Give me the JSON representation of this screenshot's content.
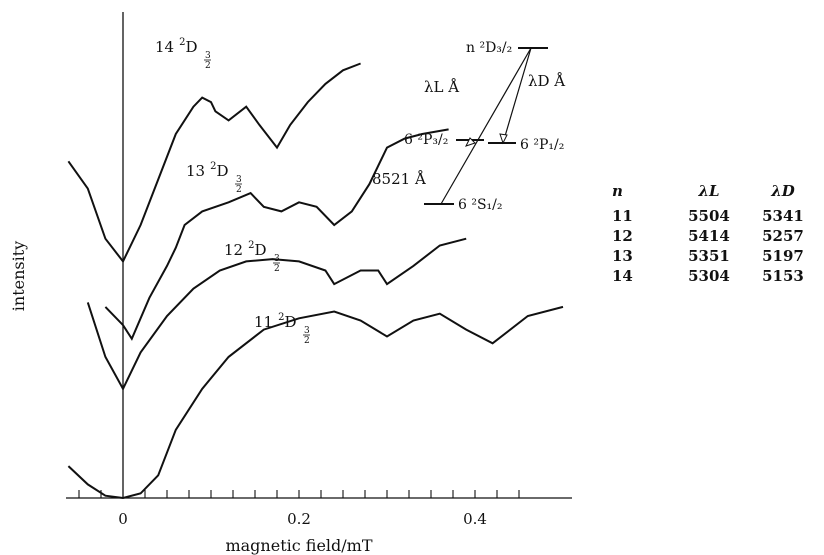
{
  "chart_data": {
    "type": "line",
    "xlabel": "magnetic field/mT",
    "ylabel": "intensity",
    "xlim": [
      -0.07,
      0.51
    ],
    "x_ticks": [
      "0",
      "0.2",
      "0.4"
    ],
    "series": [
      {
        "name": "14 ²D₃/₂",
        "points": [
          [
            -0.062,
            0.74
          ],
          [
            -0.04,
            0.68
          ],
          [
            -0.02,
            0.57
          ],
          [
            0,
            0.52
          ],
          [
            0.02,
            0.6
          ],
          [
            0.04,
            0.7
          ],
          [
            0.06,
            0.8
          ],
          [
            0.08,
            0.86
          ],
          [
            0.09,
            0.88
          ],
          [
            0.1,
            0.87
          ],
          [
            0.105,
            0.85
          ],
          [
            0.12,
            0.83
          ],
          [
            0.14,
            0.86
          ],
          [
            0.155,
            0.82
          ],
          [
            0.175,
            0.77
          ],
          [
            0.19,
            0.82
          ],
          [
            0.21,
            0.87
          ],
          [
            0.23,
            0.91
          ],
          [
            0.25,
            0.94
          ],
          [
            0.27,
            0.955
          ]
        ]
      },
      {
        "name": "13 ²D₃/₂",
        "points": [
          [
            -0.02,
            0.42
          ],
          [
            0,
            0.38
          ],
          [
            0.01,
            0.35
          ],
          [
            0.03,
            0.44
          ],
          [
            0.05,
            0.51
          ],
          [
            0.06,
            0.55
          ],
          [
            0.07,
            0.6
          ],
          [
            0.09,
            0.63
          ],
          [
            0.12,
            0.65
          ],
          [
            0.145,
            0.67
          ],
          [
            0.16,
            0.64
          ],
          [
            0.18,
            0.63
          ],
          [
            0.2,
            0.65
          ],
          [
            0.22,
            0.64
          ],
          [
            0.24,
            0.6
          ],
          [
            0.26,
            0.63
          ],
          [
            0.28,
            0.69
          ],
          [
            0.3,
            0.77
          ],
          [
            0.32,
            0.79
          ],
          [
            0.34,
            0.8
          ],
          [
            0.37,
            0.81
          ]
        ]
      },
      {
        "name": "12 ²D₃/₂",
        "points": [
          [
            -0.04,
            0.43
          ],
          [
            -0.02,
            0.31
          ],
          [
            0,
            0.24
          ],
          [
            0.02,
            0.32
          ],
          [
            0.05,
            0.4
          ],
          [
            0.08,
            0.46
          ],
          [
            0.11,
            0.5
          ],
          [
            0.14,
            0.52
          ],
          [
            0.17,
            0.525
          ],
          [
            0.2,
            0.52
          ],
          [
            0.23,
            0.5
          ],
          [
            0.24,
            0.47
          ],
          [
            0.27,
            0.5
          ],
          [
            0.29,
            0.5
          ],
          [
            0.3,
            0.47
          ],
          [
            0.33,
            0.51
          ],
          [
            0.36,
            0.555
          ],
          [
            0.39,
            0.57
          ]
        ]
      },
      {
        "name": "11 ²D₃/₂",
        "points": [
          [
            -0.062,
            0.07
          ],
          [
            -0.04,
            0.03
          ],
          [
            -0.02,
            0.005
          ],
          [
            0,
            0
          ],
          [
            0.02,
            0.01
          ],
          [
            0.04,
            0.05
          ],
          [
            0.06,
            0.15
          ],
          [
            0.09,
            0.24
          ],
          [
            0.12,
            0.31
          ],
          [
            0.16,
            0.37
          ],
          [
            0.2,
            0.395
          ],
          [
            0.24,
            0.41
          ],
          [
            0.27,
            0.39
          ],
          [
            0.3,
            0.355
          ],
          [
            0.33,
            0.39
          ],
          [
            0.36,
            0.405
          ],
          [
            0.39,
            0.37
          ],
          [
            0.42,
            0.34
          ],
          [
            0.46,
            0.4
          ],
          [
            0.5,
            0.42
          ]
        ]
      }
    ]
  },
  "curve_labels": [
    {
      "n": "14",
      "term": "D"
    },
    {
      "n": "13",
      "term": "D"
    },
    {
      "n": "12",
      "term": "D"
    },
    {
      "n": "11",
      "term": "D"
    }
  ],
  "level_diagram": {
    "upper": "n ²D₃/₂",
    "p32": "6 ²P₃/₂",
    "p12": "6 ²P₁/₂",
    "s12": "6 ²S₁/₂",
    "lambda_L": "λL Å",
    "lambda_D": "λD Å",
    "wl_8521": "8521 Å"
  },
  "table": {
    "headers": [
      "n",
      "λL",
      "λD"
    ],
    "rows": [
      [
        "11",
        "5504",
        "5341"
      ],
      [
        "12",
        "5414",
        "5257"
      ],
      [
        "13",
        "5351",
        "5197"
      ],
      [
        "14",
        "5304",
        "5153"
      ]
    ]
  }
}
